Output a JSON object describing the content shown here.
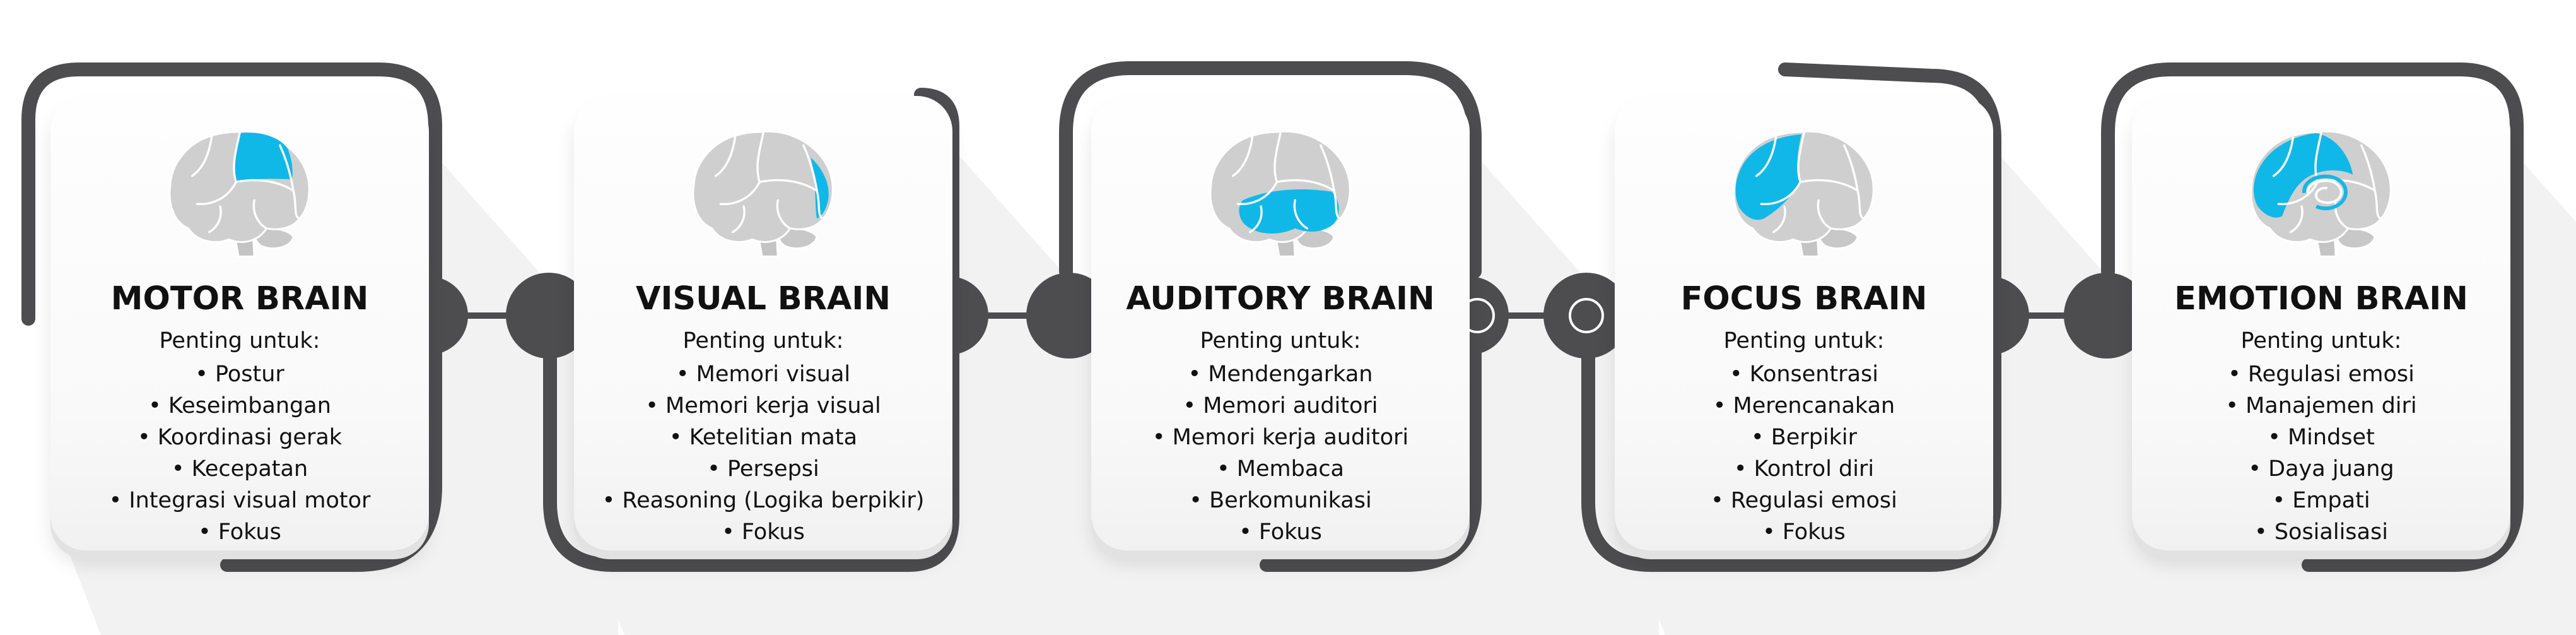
{
  "colors": {
    "highlight": "#10b8e8",
    "brain_gray": "#cfcfcf",
    "frame": "#4d4d4f",
    "text": "#111111"
  },
  "cards": [
    {
      "title": "MOTOR BRAIN",
      "subtitle": "Penting untuk:",
      "items": [
        "• Postur",
        "• Keseimbangan",
        "• Koordinasi gerak",
        "• Kecepatan",
        "• Integrasi visual motor",
        "• Fokus"
      ],
      "highlight_region": "motor-cortex"
    },
    {
      "title": "VISUAL BRAIN",
      "subtitle": "Penting untuk:",
      "items": [
        "• Memori visual",
        "• Memori kerja visual",
        "• Ketelitian mata",
        "• Persepsi",
        "• Reasoning (Logika berpikir)",
        "• Fokus"
      ],
      "highlight_region": "occipital-lobe"
    },
    {
      "title": "AUDITORY BRAIN",
      "subtitle": "Penting untuk:",
      "items": [
        "• Mendengarkan",
        "• Memori auditori",
        "• Memori kerja auditori",
        "• Membaca",
        "• Berkomunikasi",
        "• Fokus"
      ],
      "highlight_region": "temporal-lobe"
    },
    {
      "title": "FOCUS BRAIN",
      "subtitle": "Penting untuk:",
      "items": [
        "• Konsentrasi",
        "• Merencanakan",
        "• Berpikir",
        "• Kontrol diri",
        "• Regulasi emosi",
        "• Fokus"
      ],
      "highlight_region": "frontal-lobe"
    },
    {
      "title": "EMOTION BRAIN",
      "subtitle": "Penting untuk:",
      "items": [
        "• Regulasi emosi",
        "• Manajemen diri",
        "• Mindset",
        "• Daya juang",
        "• Empati",
        "• Sosialisasi"
      ],
      "highlight_region": "limbic-system"
    }
  ]
}
